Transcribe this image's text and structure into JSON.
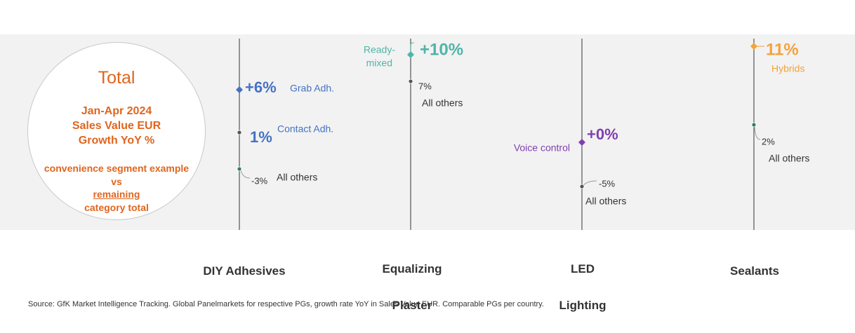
{
  "total": {
    "title": "Total",
    "subtitle_lines": [
      "Jan-Apr 2024",
      "Sales Value EUR",
      "Growth YoY %"
    ],
    "note_line1": "convenience segment example",
    "note_line2": "vs",
    "note_underlined": "remaining",
    "note_line3": "category total"
  },
  "colors": {
    "axis": "#555555",
    "blue": "#4472c4",
    "teal": "#4fb5a8",
    "purple": "#7f3fb0",
    "orange": "#f5a33b",
    "gray_text": "#333333",
    "total_orange": "#e0651e"
  },
  "chart_data": {
    "type": "scatter",
    "title": "Jan-Apr 2024 Sales Value EUR Growth YoY %",
    "categories": [
      {
        "name": "DIY Adhesives",
        "label_lines": [
          "DIY Adhesives"
        ],
        "points": [
          {
            "segment": "Grab Adh.",
            "value_label": "+6%",
            "kind": "highlight",
            "color": "#4472c4",
            "marker": "diamond"
          },
          {
            "segment": "Contact Adh.",
            "value_label": "1%",
            "kind": "highlight",
            "color": "#4472c4",
            "marker": "dot"
          },
          {
            "segment": "All others",
            "value_label": "-3%",
            "kind": "others",
            "color": "#2e7d6e",
            "marker": "dot"
          }
        ]
      },
      {
        "name": "Equalizing Plaster",
        "label_lines": [
          "Equalizing",
          "Plaster"
        ],
        "points": [
          {
            "segment": "Ready-mixed",
            "segment_lines": [
              "Ready-",
              "mixed"
            ],
            "value_label": "+10%",
            "kind": "highlight",
            "color": "#4fb5a8",
            "marker": "diamond"
          },
          {
            "segment": "All others",
            "value_label": "7%",
            "kind": "others",
            "color": "#555555",
            "marker": "dot"
          }
        ]
      },
      {
        "name": "LED Lighting",
        "label_lines": [
          "LED",
          "Lighting"
        ],
        "points": [
          {
            "segment": "Voice control",
            "value_label": "+0%",
            "kind": "highlight",
            "color": "#7f3fb0",
            "marker": "diamond"
          },
          {
            "segment": "All others",
            "value_label": "-5%",
            "kind": "others",
            "color": "#555555",
            "marker": "dot"
          }
        ]
      },
      {
        "name": "Sealants",
        "label_lines": [
          "Sealants"
        ],
        "points": [
          {
            "segment": "Hybrids",
            "value_label": "11%",
            "kind": "highlight",
            "color": "#f5a33b",
            "marker": "diamond"
          },
          {
            "segment": "All others",
            "value_label": "2%",
            "kind": "others",
            "color": "#2e7d6e",
            "marker": "dot"
          }
        ]
      }
    ]
  },
  "footer": {
    "source": "Source: GfK Market Intelligence Tracking. Global Panelmarkets for respective PGs, growth rate YoY in Sales Value EUR. Comparable PGs per country."
  }
}
